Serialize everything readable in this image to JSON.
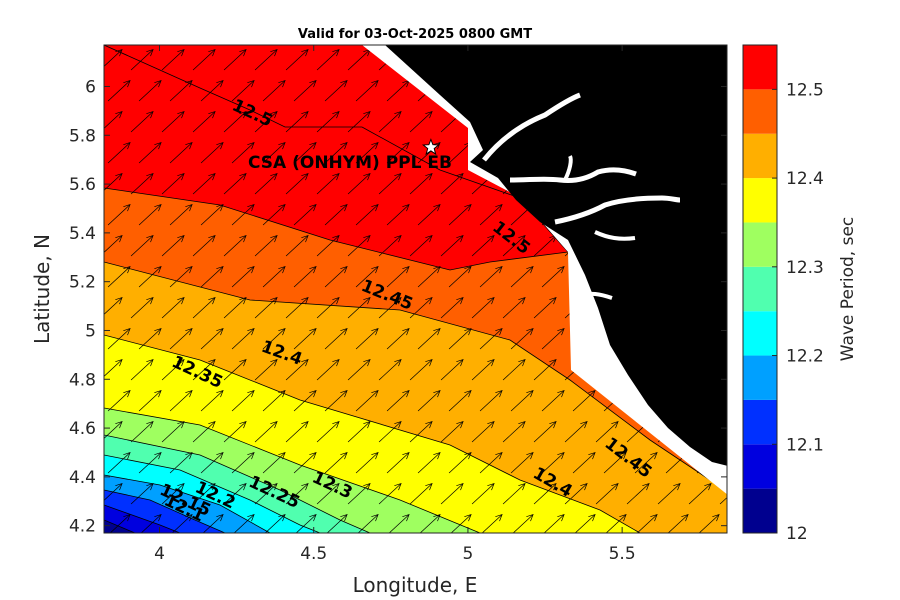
{
  "chart_data": {
    "type": "heatmap",
    "title": "Valid for 03-Oct-2025 0800 GMT",
    "xlabel": "Longitude, E",
    "ylabel": "Latitude, N",
    "colorbar_label": "Wave Period, sec",
    "xlim": [
      3.82,
      5.84
    ],
    "ylim": [
      4.17,
      6.17
    ],
    "colorbar_range": [
      12.0,
      12.55
    ],
    "x_ticks": [
      "4",
      "4.5",
      "5",
      "5.5"
    ],
    "y_ticks": [
      "4.2",
      "4.4",
      "4.6",
      "4.8",
      "5",
      "5.2",
      "5.4",
      "5.6",
      "5.8",
      "6"
    ],
    "colorbar_ticks": [
      "12",
      "12.1",
      "12.2",
      "12.3",
      "12.4",
      "12.5"
    ],
    "levels": [
      12.0,
      12.05,
      12.1,
      12.15,
      12.2,
      12.25,
      12.3,
      12.35,
      12.4,
      12.45,
      12.5,
      12.55
    ],
    "colors": [
      "#00008f",
      "#0000df",
      "#0030ff",
      "#00a0ff",
      "#00ffff",
      "#50ffaf",
      "#9fff60",
      "#ffff00",
      "#ffaf00",
      "#ff5f00",
      "#ff0000"
    ],
    "contour_labels": [
      "12.5",
      "12.5",
      "12.45",
      "12.45",
      "12.4",
      "12.4",
      "12.35",
      "12.3",
      "12.25",
      "12.2",
      "12.15",
      "12.1"
    ],
    "station": {
      "name": "CSA (ONHYM) PPL EB",
      "lon": 4.88,
      "lat": 5.75
    },
    "land_color": "#000000",
    "vector_direction": "north-east"
  }
}
